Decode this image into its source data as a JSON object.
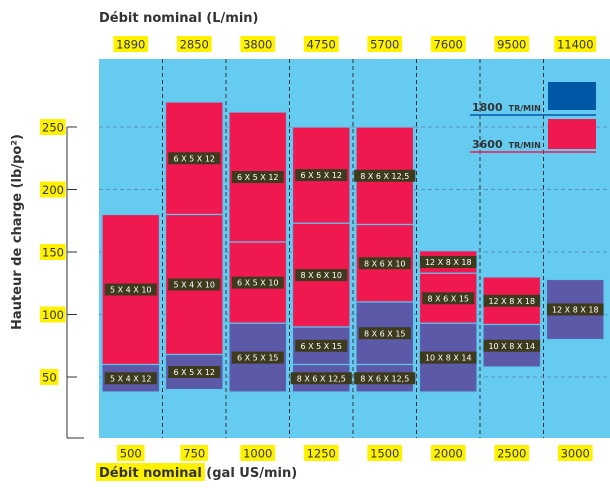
{
  "chart_data": {
    "type": "bar",
    "title": "",
    "top_axis_label": "Débit nominal (L/min)",
    "top_ticks": [
      "1890",
      "2850",
      "3800",
      "4750",
      "5700",
      "7600",
      "9500",
      "11400"
    ],
    "bottom_axis_label_highlight": "Débit nominal",
    "bottom_axis_label_rest": " (gal US/min)",
    "bottom_ticks": [
      "500",
      "750",
      "1000",
      "1250",
      "1500",
      "2000",
      "2500",
      "3000"
    ],
    "ylabel": "Hauteur de charge (lb/po²)",
    "y_ticks": [
      50,
      100,
      150,
      200,
      250
    ],
    "ylim": [
      0,
      280
    ],
    "grid": "dashed",
    "legend": {
      "placement": "top-right",
      "items": [
        {
          "speed": "1800",
          "unit": "TR/MIN",
          "color": "#0057a8"
        },
        {
          "speed": "3600",
          "unit": "TR/MIN",
          "color": "#f0194f"
        }
      ]
    },
    "colors": {
      "background": "#66cbf1",
      "rpm_3600": "#f0194f",
      "rpm_1800": "#5b59a8",
      "highlight": "#fff200"
    },
    "series": [
      {
        "name": "3600",
        "segments": [
          {
            "col": 0,
            "y0": 60,
            "y1": 180,
            "label": "5 X 4 X 10"
          },
          {
            "col": 1,
            "y0": 180,
            "y1": 270,
            "label": "6 X 5 X 12"
          },
          {
            "col": 1,
            "y0": 68,
            "y1": 180,
            "label": "5 X 4 X 10"
          },
          {
            "col": 2,
            "y0": 158,
            "y1": 262,
            "label": "6 X 5 X 12"
          },
          {
            "col": 2,
            "y0": 93,
            "y1": 158,
            "label": "6 X 5 X 10"
          },
          {
            "col": 3,
            "y0": 173,
            "y1": 250,
            "label": "6 X 5 X 12"
          },
          {
            "col": 3,
            "y0": 90,
            "y1": 173,
            "label": "8 X 6 X 10"
          },
          {
            "col": 4,
            "y0": 172,
            "y1": 250,
            "label": "8 X 6 X 12,5"
          },
          {
            "col": 4,
            "y0": 110,
            "y1": 172,
            "label": "8 X 6 X 10"
          },
          {
            "col": 5,
            "y0": 133,
            "y1": 151,
            "label": "12 X 8 X 18"
          },
          {
            "col": 5,
            "y0": 93,
            "y1": 133,
            "label": "8 X 6 X 15"
          },
          {
            "col": 6,
            "y0": 92,
            "y1": 130,
            "label": "12 X 8 X 18"
          }
        ]
      },
      {
        "name": "1800",
        "segments": [
          {
            "col": 0,
            "y0": 38,
            "y1": 60,
            "label": "5 X 4 X 12"
          },
          {
            "col": 1,
            "y0": 40,
            "y1": 68,
            "label": "6 X 5 X 12"
          },
          {
            "col": 2,
            "y0": 38,
            "y1": 93,
            "label": "6 X 5 X 15"
          },
          {
            "col": 3,
            "y0": 60,
            "y1": 90,
            "label": "6 X 5 X 15"
          },
          {
            "col": 3,
            "y0": 38,
            "y1": 60,
            "label": "8 X 6 X 12,5"
          },
          {
            "col": 4,
            "y0": 60,
            "y1": 110,
            "label": "8 X 6 X 15"
          },
          {
            "col": 4,
            "y0": 38,
            "y1": 60,
            "label": "8 X 6 X 12,5"
          },
          {
            "col": 5,
            "y0": 38,
            "y1": 93,
            "label": "10 X 8 X 14"
          },
          {
            "col": 6,
            "y0": 58,
            "y1": 92,
            "label": "10 X 8 X 14"
          },
          {
            "col": 7,
            "y0": 80,
            "y1": 128,
            "label": "12 X 8 X 18"
          }
        ]
      }
    ]
  }
}
